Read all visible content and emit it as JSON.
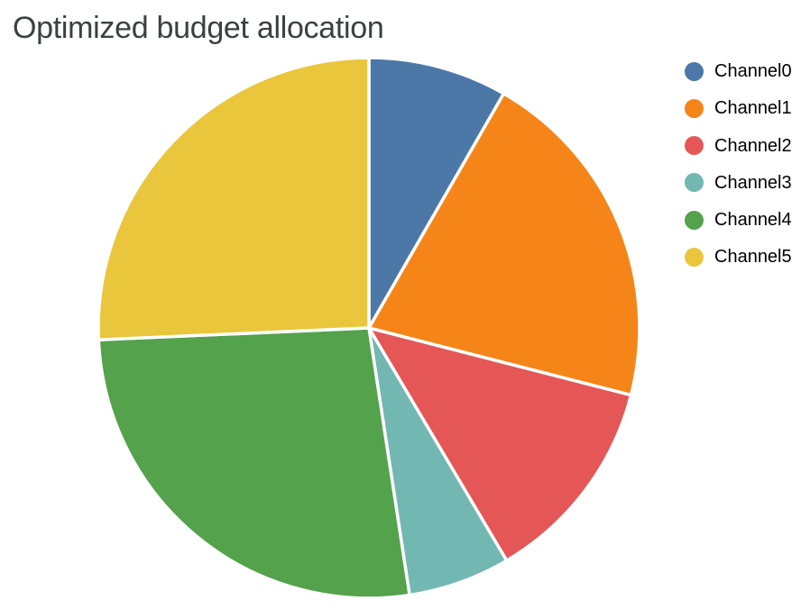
{
  "chart_data": {
    "type": "pie",
    "title": "Optimized budget allocation",
    "labels": [
      "Channel0",
      "Channel1",
      "Channel2",
      "Channel3",
      "Channel4",
      "Channel5"
    ],
    "values": [
      8.3,
      20.7,
      12.5,
      6.1,
      26.7,
      25.7
    ],
    "colors": [
      "#4c78a8",
      "#f58518",
      "#e45756",
      "#72b7b2",
      "#54a24b",
      "#eac63d"
    ],
    "start_angle_deg": 90,
    "direction": "clockwise",
    "legend_position": "right",
    "slice_border_color": "#ffffff",
    "slice_border_width": 3.5,
    "background_color": "#ffffff",
    "title_color": "#3c4043",
    "legend_text_color": "#000000"
  }
}
